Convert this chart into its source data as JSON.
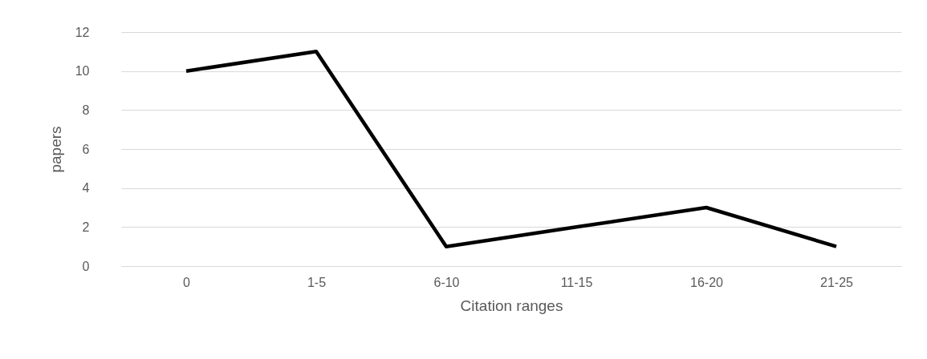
{
  "chart_data": {
    "type": "line",
    "xlabel": "Citation ranges",
    "ylabel": "papers",
    "categories": [
      "0",
      "1-5",
      "6-10",
      "11-15",
      "16-20",
      "21-25"
    ],
    "series": [
      {
        "color": "#000000",
        "values": [
          10,
          11,
          1,
          2,
          3,
          1
        ]
      }
    ],
    "ylim": [
      0,
      12
    ],
    "yticks": [
      0,
      2,
      4,
      6,
      8,
      10,
      12
    ],
    "grid": "y",
    "marker": "none",
    "line_style": "solid"
  }
}
